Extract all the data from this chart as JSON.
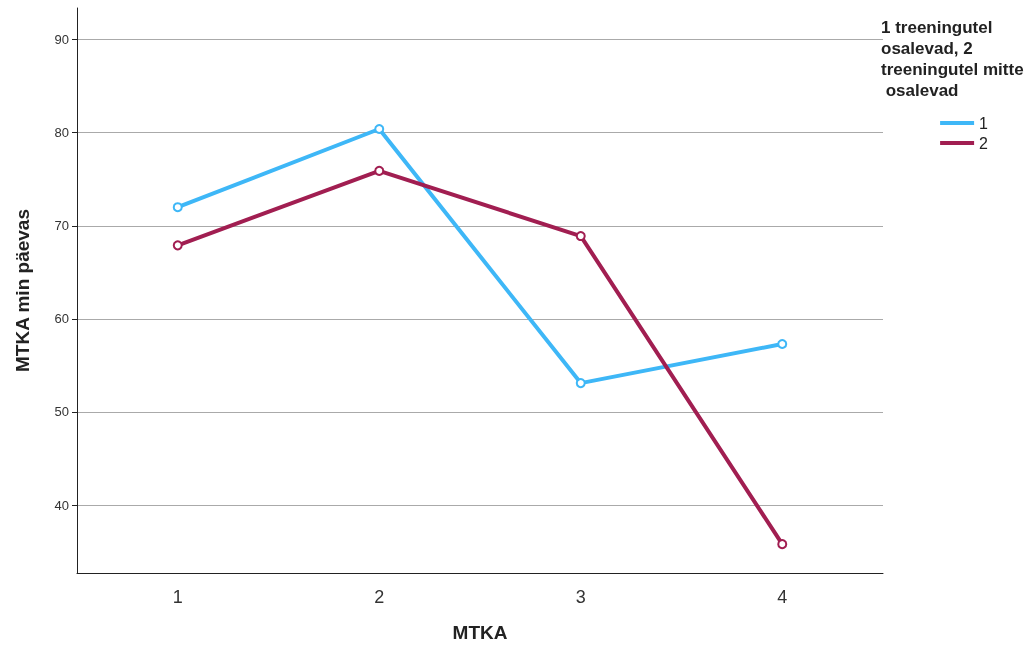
{
  "chart_data": {
    "type": "line",
    "xlabel": "MTKA",
    "ylabel": "MTKA min päevas",
    "legend_title": "1 treeningutel osalevad, 2 treeningutel mitte osalevad",
    "categories": [
      "1",
      "2",
      "3",
      "4"
    ],
    "series": [
      {
        "name": "1",
        "color": "#3eb7f7",
        "values": [
          72.0,
          80.4,
          53.1,
          57.3
        ]
      },
      {
        "name": "2",
        "color": "#a11e51",
        "values": [
          67.9,
          75.9,
          68.9,
          35.8
        ]
      }
    ],
    "ylim": [
      32.7,
      93.4
    ],
    "yticks": [
      40,
      50,
      60,
      70,
      80,
      90
    ],
    "grid": "y",
    "legend": "top right",
    "marker": "circle",
    "line_style": "solid"
  }
}
